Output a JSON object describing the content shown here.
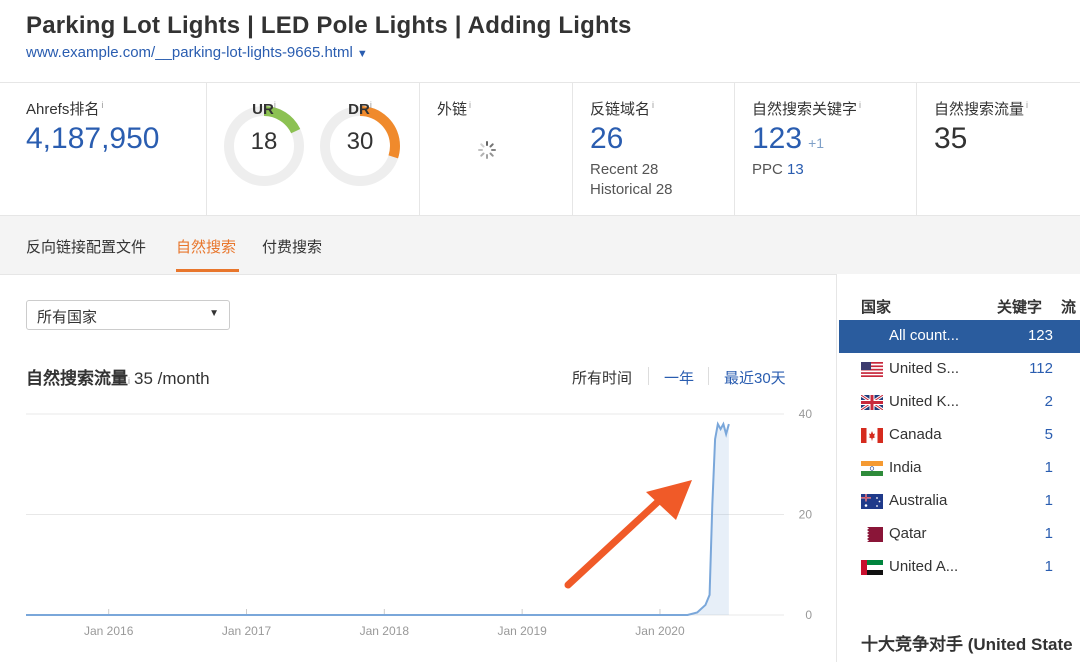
{
  "header": {
    "title": "Parking Lot Lights | LED Pole Lights | Adding Lights",
    "url": "www.example.com/__parking-lot-lights-9665.html"
  },
  "metrics": {
    "ahrefs_rank": {
      "label": "Ahrefs排名",
      "info": "i",
      "value": "4,187,950"
    },
    "ur": {
      "label": "UR",
      "info": "i",
      "value": "18",
      "level": 18,
      "color": "#8cc152"
    },
    "dr": {
      "label": "DR",
      "info": "i",
      "value": "30",
      "level": 30,
      "color": "#f08a2c"
    },
    "backlinks": {
      "label": "外链",
      "info": "i"
    },
    "ref_domains": {
      "label": "反链域名",
      "info": "i",
      "value": "26",
      "recent": "Recent 28",
      "historical": "Historical 28"
    },
    "organic_keywords": {
      "label": "自然搜索关键字",
      "info": "i",
      "value": "123",
      "delta": "+1",
      "ppc_label": "PPC",
      "ppc_value": "13"
    },
    "organic_traffic": {
      "label": "自然搜索流量",
      "info": "i",
      "value": "35"
    }
  },
  "tabs": [
    {
      "label": "反向链接配置文件",
      "active": false
    },
    {
      "label": "自然搜索",
      "active": true
    },
    {
      "label": "付费搜索",
      "active": false
    }
  ],
  "country_select": {
    "value": "所有国家"
  },
  "chart_section": {
    "title": "自然搜索流量",
    "info": "i",
    "traffic": "35 /month",
    "ranges": [
      "所有时间",
      "一年",
      "最近30天"
    ]
  },
  "chart_data": {
    "type": "line",
    "title": "",
    "x_ticks": [
      "Jan 2016",
      "Jan 2017",
      "Jan 2018",
      "Jan 2019",
      "Jan 2020"
    ],
    "y_ticks": [
      "0",
      "20",
      "40"
    ],
    "ylim": [
      0,
      40
    ],
    "x_start": 2015.4,
    "x_end": 2020.9,
    "series": [
      {
        "color": "#7aa7da",
        "points": [
          [
            2015.4,
            0
          ],
          [
            2020.2,
            0
          ],
          [
            2020.27,
            0.5
          ],
          [
            2020.33,
            2
          ],
          [
            2020.36,
            4
          ],
          [
            2020.38,
            22
          ],
          [
            2020.4,
            35
          ],
          [
            2020.42,
            38
          ],
          [
            2020.44,
            37
          ],
          [
            2020.46,
            38
          ],
          [
            2020.48,
            36
          ],
          [
            2020.5,
            38
          ]
        ]
      }
    ],
    "annotation": {
      "type": "arrow",
      "color": "#f05a28"
    }
  },
  "country_table": {
    "col_country": "国家",
    "col_keywords": "关键字",
    "col_traffic": "流量",
    "rows": [
      {
        "name": "All count...",
        "keywords": "123",
        "flag": "none",
        "selected": true
      },
      {
        "name": "United S...",
        "keywords": "112",
        "flag": "us-flag-icon"
      },
      {
        "name": "United K...",
        "keywords": "2",
        "flag": "uk-flag-icon"
      },
      {
        "name": "Canada",
        "keywords": "5",
        "flag": "ca-flag-icon"
      },
      {
        "name": "India",
        "keywords": "1",
        "flag": "in-flag-icon"
      },
      {
        "name": "Australia",
        "keywords": "1",
        "flag": "au-flag-icon"
      },
      {
        "name": "Qatar",
        "keywords": "1",
        "flag": "qa-flag-icon"
      },
      {
        "name": "United A...",
        "keywords": "1",
        "flag": "ae-flag-icon"
      }
    ],
    "competitors_title": "十大竞争对手 (United State"
  }
}
